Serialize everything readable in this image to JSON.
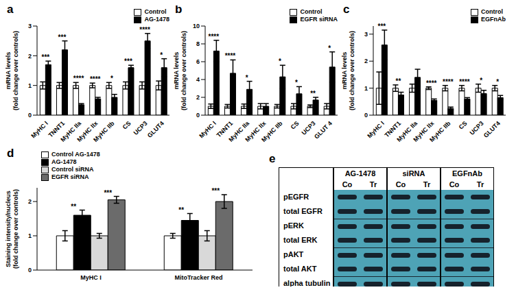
{
  "chart_data": [
    {
      "type": "bar",
      "title": "a",
      "y_label": [
        "mRNA levels",
        "(fold change over controls)"
      ],
      "legend": "upper right",
      "categories": [
        "MyHC I",
        "TNNT1",
        "MyHC IIa",
        "MyHC IIx",
        "MyHC IIb",
        "CS",
        "UCP3",
        "GLUT4"
      ],
      "ylim": [
        0,
        3
      ],
      "yticks": [
        0,
        1,
        2,
        3
      ],
      "series": [
        {
          "name": "Control",
          "color": "#ffffff",
          "values": [
            1,
            1,
            1,
            1,
            1,
            1,
            1,
            1
          ],
          "errors": [
            0.12,
            0.1,
            0.1,
            0.08,
            0.1,
            0.12,
            0.12,
            0.15
          ]
        },
        {
          "name": "AG-1478",
          "color": "#000000",
          "values": [
            1.7,
            2.2,
            0.35,
            0.55,
            0.6,
            1.6,
            2.5,
            1.6
          ],
          "errors": [
            0.12,
            0.3,
            0.04,
            0.05,
            0.1,
            0.08,
            0.25,
            0.3
          ],
          "annotations": [
            "***",
            "***",
            "****",
            "****",
            "*",
            "***",
            "****",
            "*"
          ]
        }
      ]
    },
    {
      "type": "bar",
      "title": "b",
      "y_label": [
        "mRNA levels",
        "(fold change over controls)"
      ],
      "legend": "upper right",
      "categories": [
        "MyHC I",
        "TNNT1",
        "MyHC IIa",
        "MyHC IIx",
        "MyHC IIb",
        "CS",
        "UCP3",
        "GLUT 4"
      ],
      "ylim": [
        0,
        10
      ],
      "yticks": [
        0,
        2,
        4,
        6,
        8,
        10
      ],
      "series": [
        {
          "name": "Control",
          "color": "#ffffff",
          "values": [
            1,
            1,
            1,
            1,
            1,
            1,
            1,
            1
          ],
          "errors": [
            0.25,
            0.2,
            0.25,
            0.3,
            0.2,
            0.3,
            0.15,
            0.3
          ]
        },
        {
          "name": "EGFR siRNA",
          "color": "#000000",
          "values": [
            7.2,
            4.7,
            2.9,
            1.0,
            4.3,
            2.4,
            1.7,
            5.4
          ],
          "errors": [
            1.2,
            1.5,
            0.9,
            0.3,
            1.3,
            0.8,
            0.3,
            1.7
          ],
          "annotations": [
            "****",
            "****",
            "*",
            null,
            "*",
            "*",
            "**",
            "*"
          ]
        }
      ]
    },
    {
      "type": "bar",
      "title": "c",
      "y_label": [
        "mRNA levels",
        "(fold change over controls)"
      ],
      "legend": "upper right",
      "categories": [
        "MyHC I",
        "TNNT1",
        "MyHC IIa",
        "MyHC IIx",
        "MyHC IIb",
        "CS",
        "UCP3",
        "GLUT4"
      ],
      "ylim": [
        0,
        3.3
      ],
      "yticks": [
        0,
        1,
        2,
        3
      ],
      "series": [
        {
          "name": "Control",
          "color": "#ffffff",
          "values": [
            1,
            1,
            1,
            1,
            1,
            1,
            1,
            1
          ],
          "errors": [
            0.6,
            0.12,
            0.15,
            0.05,
            0.1,
            0.1,
            0.15,
            0.1
          ]
        },
        {
          "name": "EGFnAb",
          "color": "#000000",
          "values": [
            2.6,
            0.75,
            1.4,
            0.55,
            0.25,
            0.6,
            0.8,
            0.65
          ],
          "errors": [
            0.55,
            0.1,
            0.3,
            0.05,
            0.05,
            0.05,
            0.12,
            0.08
          ],
          "annotations": [
            "***",
            "**",
            null,
            "****",
            "****",
            "****",
            "*",
            "*"
          ]
        }
      ]
    },
    {
      "type": "bar",
      "title": "d",
      "y_label": [
        "Staining intensity/nucleus",
        "(fold change over controls)"
      ],
      "legend": "upper left",
      "categories": [
        "MyHC I",
        "MitoTracker Red"
      ],
      "ylim": [
        0,
        2.4
      ],
      "yticks": [
        0,
        1,
        2
      ],
      "series": [
        {
          "name": "Control AG-1478",
          "color": "#ffffff",
          "values": [
            1,
            1
          ],
          "errors": [
            0.15,
            0.07
          ]
        },
        {
          "name": "AG-1478",
          "color": "#000000",
          "values": [
            1.6,
            1.45
          ],
          "errors": [
            0.15,
            0.2
          ],
          "annotations": [
            "**",
            "**"
          ]
        },
        {
          "name": "Control siRNA",
          "color": "#d9d9d9",
          "values": [
            1,
            1
          ],
          "errors": [
            0.07,
            0.15
          ]
        },
        {
          "name": "EGFR siRNA",
          "color": "#6b6b6b",
          "values": [
            2.05,
            2.0
          ],
          "errors": [
            0.1,
            0.2
          ],
          "annotations": [
            "***",
            "***"
          ]
        }
      ]
    }
  ],
  "blot": {
    "title": "e",
    "groups": [
      {
        "name": "AG-1478",
        "lanes": [
          "Co",
          "Tr"
        ]
      },
      {
        "name": "siRNA",
        "lanes": [
          "Co",
          "Tr"
        ]
      },
      {
        "name": "EGFnAb",
        "lanes": [
          "Co",
          "Tr"
        ]
      }
    ],
    "rows": [
      "pEGFR",
      "total EGFR",
      "pERK",
      "total ERK",
      "pAKT",
      "total AKT",
      "alpha tubulin"
    ]
  }
}
